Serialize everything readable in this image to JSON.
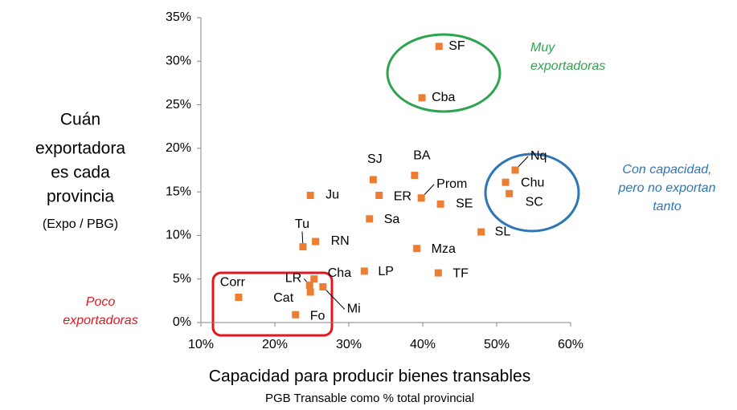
{
  "chart_data": {
    "type": "scatter",
    "y_label_lines": [
      "Cuán",
      "exportadora",
      "es cada",
      "provincia",
      "(Expo / PBG)"
    ],
    "x_label": "Capacidad para producir bienes transables",
    "x_sublabel": "PGB Transable como % total provincial",
    "annotations": [
      {
        "lines": [
          "Muy",
          "exportadoras"
        ],
        "color": "#2ea44f"
      },
      {
        "lines": [
          "Con capacidad,",
          "pero no exportan",
          "tanto"
        ],
        "color": "#2e75b6"
      },
      {
        "lines": [
          "Poco",
          "exportadoras"
        ],
        "color": "#e8141c"
      }
    ],
    "xlim": [
      10,
      60
    ],
    "ylim": [
      0,
      35
    ],
    "xticks": [
      {
        "value": 10,
        "label": "10%"
      },
      {
        "value": 20,
        "label": "20%"
      },
      {
        "value": 30,
        "label": "30%"
      },
      {
        "value": 40,
        "label": "40%"
      },
      {
        "value": 50,
        "label": "50%"
      },
      {
        "value": 60,
        "label": "60%"
      }
    ],
    "yticks": [
      {
        "value": 0,
        "label": "0%"
      },
      {
        "value": 5,
        "label": "5%"
      },
      {
        "value": 10,
        "label": "10%"
      },
      {
        "value": 15,
        "label": "15%"
      },
      {
        "value": 20,
        "label": "20%"
      },
      {
        "value": 25,
        "label": "25%"
      },
      {
        "value": 30,
        "label": "30%"
      },
      {
        "value": 35,
        "label": "35%"
      }
    ],
    "grid": false,
    "series": [
      {
        "color": "#ed7d31",
        "point_labels": [
          "SF",
          "Cba",
          "BA",
          "SJ",
          "Prom",
          "ER",
          "Ju",
          "SE",
          "Sa",
          "Tu",
          "RN",
          "Mza",
          "SL",
          "Nq",
          "Chu",
          "SC",
          "Cha",
          "LP",
          "TF",
          "LR",
          "Cat",
          "Mi",
          "Fo",
          "Corr"
        ],
        "x": [
          42.2,
          39.9,
          38.9,
          33.3,
          39.8,
          34.1,
          24.8,
          42.4,
          32.8,
          23.8,
          25.5,
          39.2,
          47.9,
          52.5,
          51.2,
          51.7,
          25.3,
          32.1,
          42.1,
          24.7,
          24.8,
          26.5,
          22.8,
          15.1
        ],
        "values": [
          31.7,
          25.8,
          16.9,
          16.4,
          14.3,
          14.6,
          14.6,
          13.6,
          11.9,
          8.7,
          9.3,
          8.5,
          10.4,
          17.5,
          16.1,
          14.8,
          5.0,
          5.9,
          5.7,
          4.3,
          3.5,
          4.1,
          0.9,
          2.9
        ]
      }
    ]
  }
}
